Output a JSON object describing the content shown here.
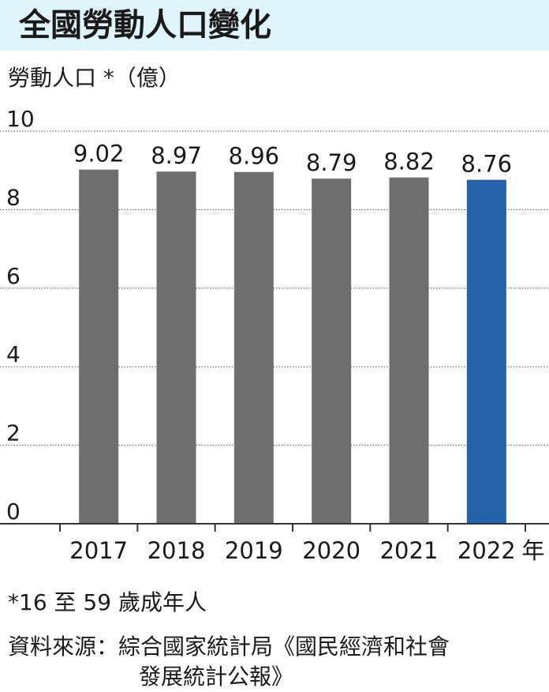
{
  "title": "全國勞動人口變化",
  "footnote": "*16 至 59 歲成年人",
  "source": {
    "line1": "資料來源：綜合國家統計局《國民經濟和社會",
    "line2": "發展統計公報》"
  },
  "colors": {
    "title_bg": "#dff4fb",
    "bar_default": "#6e6e6e",
    "bar_highlight": "#2463a8"
  },
  "chart_data": {
    "type": "bar",
    "ylabel": "勞動人口 *（億）",
    "xlabel": "年",
    "categories": [
      "2017",
      "2018",
      "2019",
      "2020",
      "2021",
      "2022"
    ],
    "values": [
      9.02,
      8.97,
      8.96,
      8.79,
      8.82,
      8.76
    ],
    "data_labels": [
      "9.02",
      "8.97",
      "8.96",
      "8.79",
      "8.82",
      "8.76"
    ],
    "highlight_category": "2022",
    "ylim": [
      0,
      10
    ],
    "yticks": [
      0,
      2,
      4,
      6,
      8,
      10
    ],
    "grid": true
  }
}
